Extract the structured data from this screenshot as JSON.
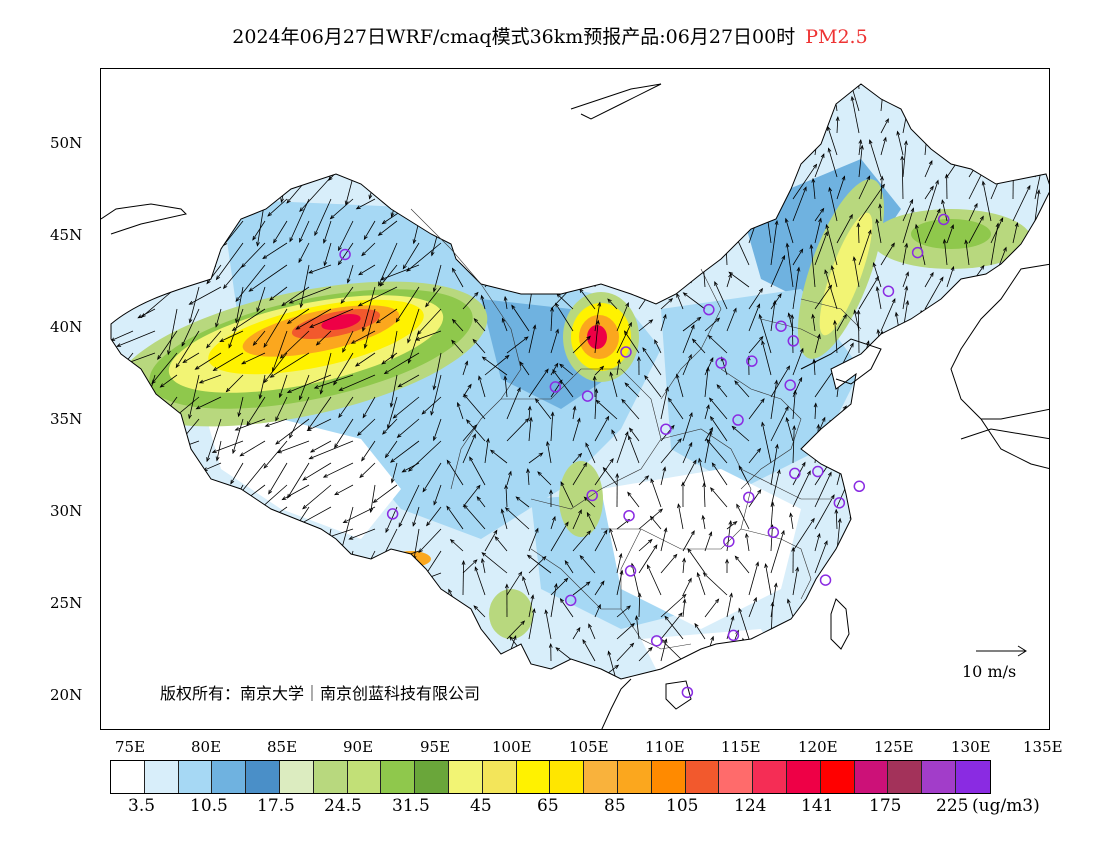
{
  "title": {
    "main": "2024年06月27日WRF/cmaq模式36km预报产品:06月27日00时",
    "highlight": "PM2.5"
  },
  "map": {
    "lat_labels": [
      "50N",
      "45N",
      "40N",
      "35N",
      "30N",
      "25N",
      "20N"
    ],
    "lon_labels": [
      "75E",
      "80E",
      "85E",
      "90E",
      "95E",
      "100E",
      "105E",
      "110E",
      "115E",
      "120E",
      "125E",
      "130E",
      "135E"
    ]
  },
  "copyright": "版权所有：南京大学｜南京创蓝科技有限公司",
  "wind_scale": "10 m/s",
  "legend": {
    "colors": [
      "#ffffff",
      "#d8eefa",
      "#a6d8f4",
      "#6fb2e0",
      "#4a8fc8",
      "#dcecc0",
      "#b8d87e",
      "#c2e077",
      "#8fc84c",
      "#6aa63a",
      "#f2f474",
      "#f3e55a",
      "#fff200",
      "#ffe600",
      "#f9b23c",
      "#fba71e",
      "#ff8a00",
      "#f2592d",
      "#ff6b6b",
      "#f52d55",
      "#ee0046",
      "#ff0000",
      "#cc1178",
      "#a3325a",
      "#a23dc9",
      "#8a2be2"
    ],
    "labels": [
      "3.5",
      "10.5",
      "17.5",
      "24.5",
      "31.5",
      "45",
      "65",
      "85",
      "105",
      "124",
      "141",
      "175",
      "225"
    ],
    "unit": "(ug/m3)"
  },
  "stations": [
    [
      88,
      43.8
    ],
    [
      127,
      45.7
    ],
    [
      125.3,
      43.9
    ],
    [
      123.4,
      41.8
    ],
    [
      116.4,
      39.9
    ],
    [
      117.2,
      39.1
    ],
    [
      114.5,
      38
    ],
    [
      112.5,
      37.9
    ],
    [
      111.7,
      40.8
    ],
    [
      106.3,
      38.5
    ],
    [
      101.7,
      36.6
    ],
    [
      103.8,
      36.1
    ],
    [
      108.9,
      34.3
    ],
    [
      113.6,
      34.8
    ],
    [
      117,
      36.7
    ],
    [
      117.3,
      31.9
    ],
    [
      118.8,
      32
    ],
    [
      120.2,
      30.3
    ],
    [
      121.5,
      31.2
    ],
    [
      114.3,
      30.6
    ],
    [
      113,
      28.2
    ],
    [
      115.9,
      28.7
    ],
    [
      119.3,
      26.1
    ],
    [
      113.3,
      23.1
    ],
    [
      108.3,
      22.8
    ],
    [
      110.3,
      20
    ],
    [
      106.6,
      26.6
    ],
    [
      102.7,
      25
    ],
    [
      104.1,
      30.7
    ],
    [
      106.5,
      29.6
    ],
    [
      91.1,
      29.7
    ]
  ]
}
